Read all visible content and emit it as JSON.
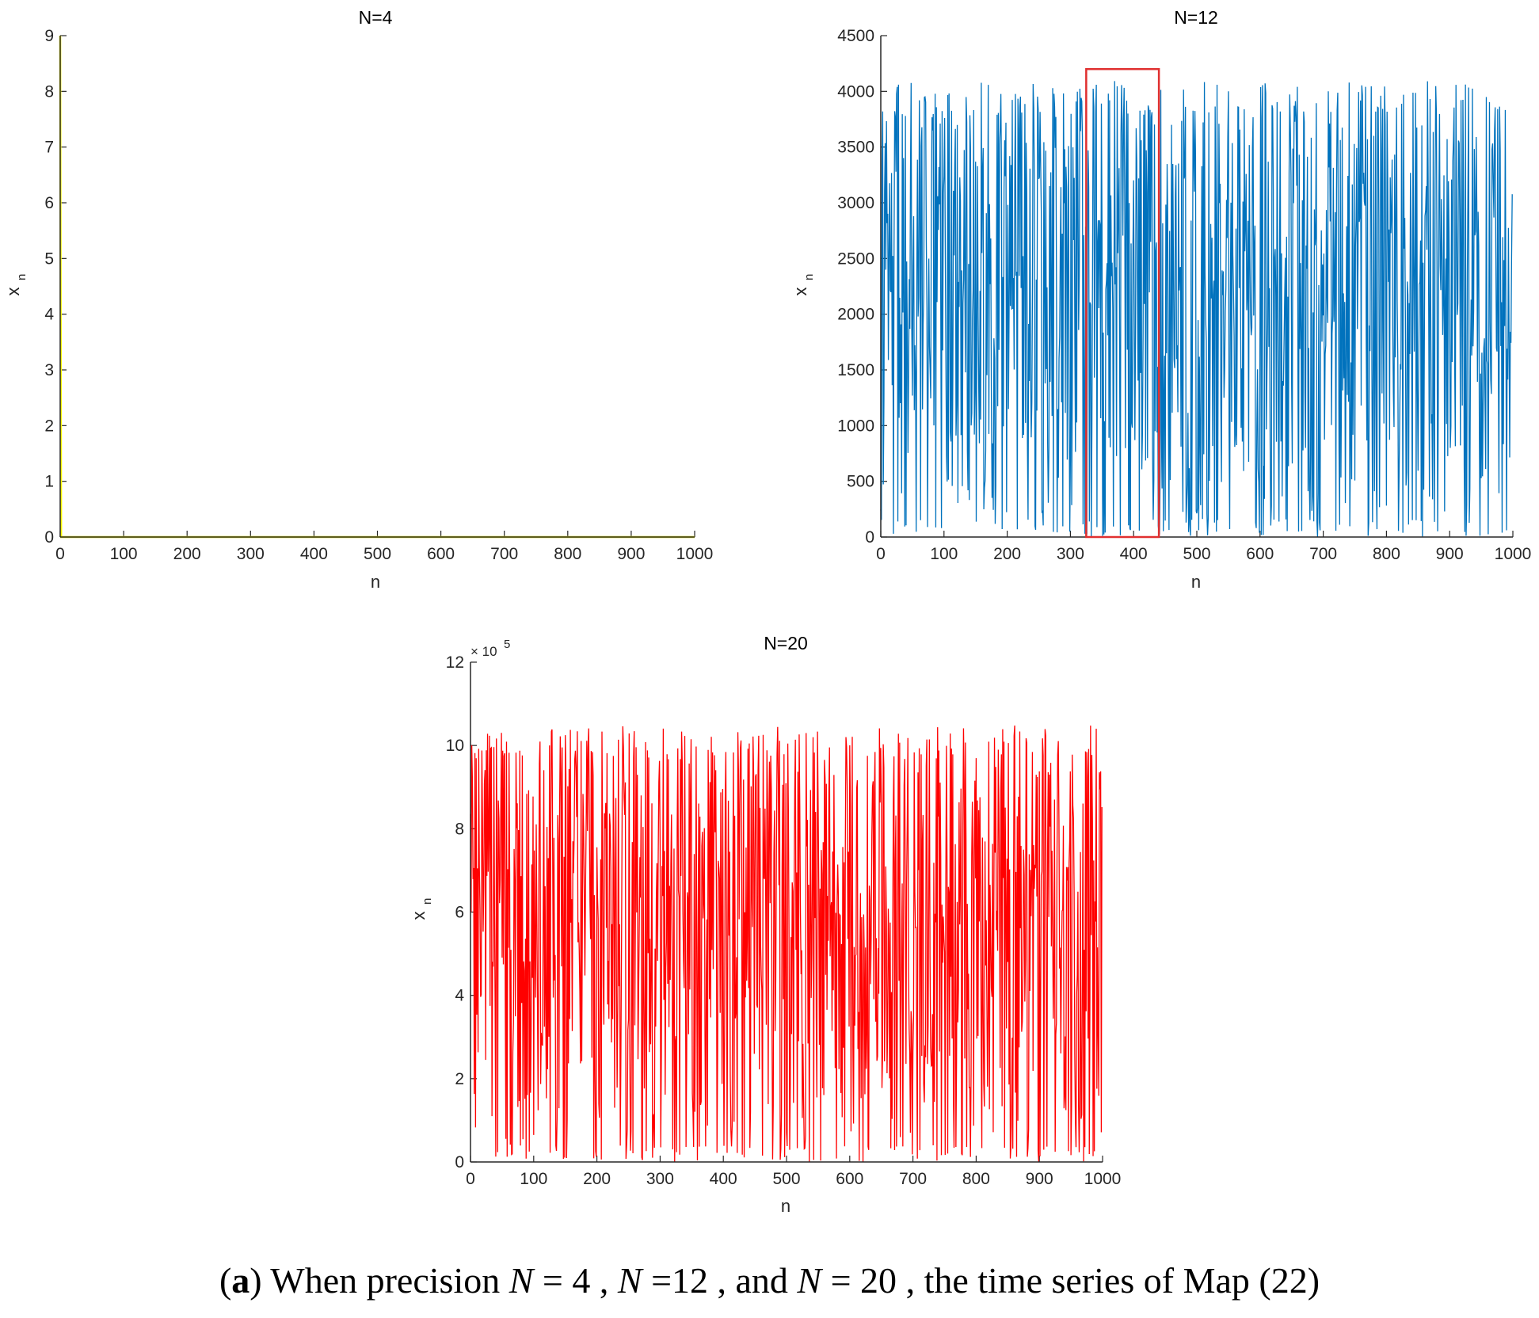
{
  "chart_data": [
    {
      "type": "line",
      "title": "N=4",
      "xlabel": "n",
      "ylabel": "x",
      "ylabel_sub": "n",
      "xlim": [
        0,
        1000
      ],
      "ylim": [
        0,
        9
      ],
      "xticks": [
        "0",
        "100",
        "200",
        "300",
        "400",
        "500",
        "600",
        "700",
        "800",
        "900",
        "1000"
      ],
      "yticks": [
        "0",
        "1",
        "2",
        "3",
        "4",
        "5",
        "6",
        "7",
        "8",
        "9"
      ],
      "color": "#ffff00",
      "series": [
        {
          "name": "N=4",
          "description": "spikes from 9 to 0 at n≈0, then stays at 0",
          "values_start": [
            9,
            0
          ],
          "steady_value": 0
        }
      ]
    },
    {
      "type": "line",
      "title": "N=12",
      "xlabel": "n",
      "ylabel": "x",
      "ylabel_sub": "n",
      "xlim": [
        0,
        1000
      ],
      "ylim": [
        0,
        4500
      ],
      "xticks": [
        "0",
        "100",
        "200",
        "300",
        "400",
        "500",
        "600",
        "700",
        "800",
        "900",
        "1000"
      ],
      "yticks": [
        "0",
        "500",
        "1000",
        "1500",
        "2000",
        "2500",
        "3000",
        "3500",
        "4000",
        "4500"
      ],
      "color": "#0072bd",
      "series": [
        {
          "name": "N=12",
          "range": [
            0,
            4095
          ],
          "length": 1000
        }
      ],
      "highlight_box": {
        "x_range": [
          325,
          440
        ],
        "y_range": [
          0,
          4200
        ],
        "color": "#e03030"
      }
    },
    {
      "type": "line",
      "title": "N=20",
      "xlabel": "n",
      "ylabel": "x",
      "ylabel_sub": "n",
      "xlim": [
        0,
        1000
      ],
      "ylim": [
        0,
        12
      ],
      "multiplier": "× 10",
      "multiplier_exp": "5",
      "xticks": [
        "0",
        "100",
        "200",
        "300",
        "400",
        "500",
        "600",
        "700",
        "800",
        "900",
        "1000"
      ],
      "yticks": [
        "0",
        "2",
        "4",
        "6",
        "8",
        "10",
        "12"
      ],
      "color": "#ff0000",
      "series": [
        {
          "name": "N=20",
          "range": [
            0,
            10.48
          ],
          "length": 1000
        }
      ]
    }
  ],
  "caption": {
    "label": "a",
    "text1": ") When precision ",
    "eq1_var": "N",
    "eq1_rest": " = 4 ,  ",
    "eq2_var": "N",
    "eq2_rest": " =12 , and  ",
    "eq3_var": "N",
    "eq3_rest": " = 20 ",
    "text2": ", the time series of Map (22)"
  }
}
